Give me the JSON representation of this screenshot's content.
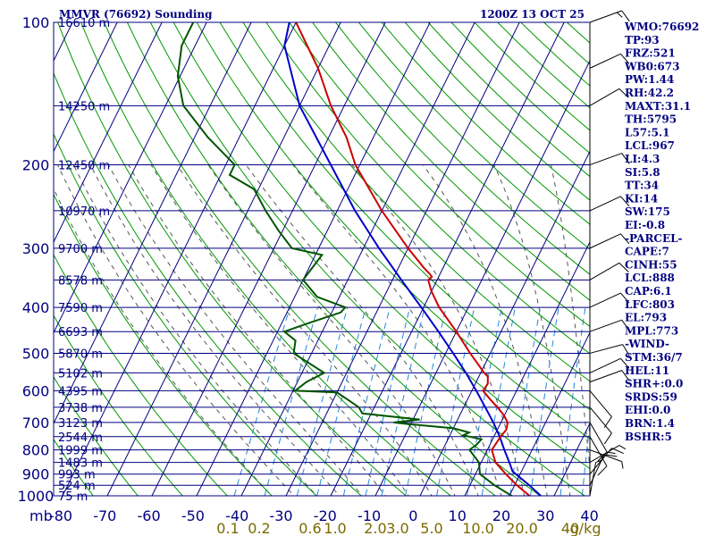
{
  "title": "MMVR (76692) Sounding",
  "time": "1200Z 13 OCT 25",
  "colors": {
    "frame": "#000080",
    "dry_adiabat": "#009900",
    "moist_adiabat": "#555555",
    "mixing_ratio": "#2288dd",
    "temperature": "#cc0000",
    "dewpoint": "#005500",
    "parcel": "#0000cc",
    "mixing_ratio_labels": "#7a6a00"
  },
  "chart_data": {
    "type": "skew-t",
    "pressure_axis": {
      "unit": "mb",
      "range": [
        1000,
        100
      ],
      "scale": "log",
      "ticks": [
        100,
        200,
        300,
        400,
        500,
        600,
        700,
        800,
        900,
        1000
      ]
    },
    "temperature_axis": {
      "unit": "C",
      "ticks": [
        -80,
        -70,
        -60,
        -50,
        -40,
        -30,
        -20,
        -10,
        0,
        10,
        20,
        30,
        40
      ]
    },
    "x_tick_labels": [
      "-80",
      "-70",
      "-60",
      "-50",
      "-40",
      "-30",
      "-20",
      "-10",
      "0",
      "10",
      "20",
      "30",
      "40"
    ],
    "pressure_unit_label": "mb",
    "height_labels": [
      {
        "p": 100,
        "text": "16610 m"
      },
      {
        "p": 150,
        "text": "14250 m"
      },
      {
        "p": 200,
        "text": "12450 m"
      },
      {
        "p": 250,
        "text": "10970 m"
      },
      {
        "p": 300,
        "text": "9700 m"
      },
      {
        "p": 350,
        "text": "8578 m"
      },
      {
        "p": 400,
        "text": "7590 m"
      },
      {
        "p": 450,
        "text": "6693 m"
      },
      {
        "p": 500,
        "text": "5870 m"
      },
      {
        "p": 550,
        "text": "5102 m"
      },
      {
        "p": 600,
        "text": "4395 m"
      },
      {
        "p": 650,
        "text": "3738 m"
      },
      {
        "p": 700,
        "text": "3123 m"
      },
      {
        "p": 750,
        "text": "2544 m"
      },
      {
        "p": 800,
        "text": "1999 m"
      },
      {
        "p": 850,
        "text": "1483 m"
      },
      {
        "p": 900,
        "text": "993 m"
      },
      {
        "p": 950,
        "text": "524 m"
      },
      {
        "p": 1000,
        "text": "75 m"
      }
    ],
    "mixing_ratio_labels": [
      "0.1",
      "0.2",
      "0.6",
      "1.0",
      "2.0",
      "3.0",
      "5.0",
      "10.0",
      "20.0",
      "40"
    ],
    "mixing_ratio_unit": "g/kg",
    "temperature_profile": [
      [
        1003,
        24.0
      ],
      [
        1000,
        24.5
      ],
      [
        950,
        20.5
      ],
      [
        900,
        16.8
      ],
      [
        850,
        13.2
      ],
      [
        800,
        11.0
      ],
      [
        750,
        11.5
      ],
      [
        725,
        12.0
      ],
      [
        700,
        11.5
      ],
      [
        675,
        9.8
      ],
      [
        650,
        7.5
      ],
      [
        625,
        5.0
      ],
      [
        600,
        2.5
      ],
      [
        580,
        2.8
      ],
      [
        560,
        2.0
      ],
      [
        550,
        0.8
      ],
      [
        500,
        -4.5
      ],
      [
        450,
        -10.0
      ],
      [
        400,
        -16.5
      ],
      [
        370,
        -20.0
      ],
      [
        350,
        -22.0
      ],
      [
        345,
        -21.5
      ],
      [
        340,
        -22.3
      ],
      [
        330,
        -24.3
      ],
      [
        300,
        -30.0
      ],
      [
        250,
        -40.0
      ],
      [
        200,
        -51.0
      ],
      [
        175,
        -56.0
      ],
      [
        150,
        -63.0
      ],
      [
        125,
        -70.0
      ],
      [
        100,
        -80.0
      ]
    ],
    "dewpoint_profile": [
      [
        1003,
        20.0
      ],
      [
        1000,
        20.5
      ],
      [
        950,
        15.5
      ],
      [
        900,
        11.0
      ],
      [
        850,
        9.5
      ],
      [
        800,
        6.0
      ],
      [
        780,
        7.0
      ],
      [
        760,
        7.5
      ],
      [
        745,
        3.0
      ],
      [
        735,
        4.0
      ],
      [
        720,
        0.0
      ],
      [
        705,
        -11.0
      ],
      [
        700,
        -14.0
      ],
      [
        690,
        -8.5
      ],
      [
        670,
        -22.0
      ],
      [
        650,
        -23.5
      ],
      [
        625,
        -27.0
      ],
      [
        605,
        -30.0
      ],
      [
        600,
        -39.5
      ],
      [
        575,
        -38.0
      ],
      [
        550,
        -35.0
      ],
      [
        500,
        -44.0
      ],
      [
        470,
        -45.0
      ],
      [
        450,
        -48.5
      ],
      [
        430,
        -43.5
      ],
      [
        410,
        -38.0
      ],
      [
        400,
        -37.5
      ],
      [
        380,
        -45.0
      ],
      [
        350,
        -50.0
      ],
      [
        310,
        -48.5
      ],
      [
        300,
        -56.0
      ],
      [
        275,
        -61.0
      ],
      [
        250,
        -66.0
      ],
      [
        225,
        -71.0
      ],
      [
        210,
        -78.0
      ],
      [
        200,
        -78.0
      ],
      [
        175,
        -87.0
      ],
      [
        150,
        -96.0
      ],
      [
        130,
        -100.5
      ],
      [
        112,
        -103.0
      ],
      [
        100,
        -103.0
      ]
    ],
    "parcel_profile": [
      [
        1000,
        27.0
      ],
      [
        950,
        23.3
      ],
      [
        888,
        18.0
      ],
      [
        850,
        16.3
      ],
      [
        800,
        13.8
      ],
      [
        750,
        11.3
      ],
      [
        700,
        8.3
      ],
      [
        650,
        4.8
      ],
      [
        600,
        1.0
      ],
      [
        550,
        -3.3
      ],
      [
        500,
        -8.3
      ],
      [
        450,
        -14.0
      ],
      [
        400,
        -20.5
      ],
      [
        350,
        -28.0
      ],
      [
        300,
        -36.5
      ],
      [
        250,
        -46.0
      ],
      [
        200,
        -56.5
      ],
      [
        150,
        -70.0
      ],
      [
        112,
        -80.0
      ],
      [
        100,
        -81.5
      ]
    ],
    "wind_barbs": [
      {
        "p": 1000,
        "dir": 10,
        "spd": 5
      },
      {
        "p": 950,
        "dir": 25,
        "spd": 10
      },
      {
        "p": 900,
        "dir": 40,
        "spd": 15
      },
      {
        "p": 850,
        "dir": 60,
        "spd": 5
      },
      {
        "p": 800,
        "dir": 110,
        "spd": 5
      },
      {
        "p": 750,
        "dir": 150,
        "spd": 10
      },
      {
        "p": 700,
        "dir": 150,
        "spd": 10
      },
      {
        "p": 650,
        "dir": 140,
        "spd": 10
      },
      {
        "p": 600,
        "dir": 140,
        "spd": 10
      },
      {
        "p": 575,
        "dir": 70,
        "spd": 10
      },
      {
        "p": 550,
        "dir": 65,
        "spd": 10
      },
      {
        "p": 500,
        "dir": 75,
        "spd": 10
      },
      {
        "p": 450,
        "dir": 70,
        "spd": 10
      },
      {
        "p": 400,
        "dir": 65,
        "spd": 10
      },
      {
        "p": 350,
        "dir": 60,
        "spd": 10
      },
      {
        "p": 300,
        "dir": 65,
        "spd": 10
      },
      {
        "p": 250,
        "dir": 65,
        "spd": 10
      },
      {
        "p": 200,
        "dir": 70,
        "spd": 10
      },
      {
        "p": 150,
        "dir": 60,
        "spd": 10
      },
      {
        "p": 125,
        "dir": 65,
        "spd": 10
      },
      {
        "p": 100,
        "dir": 70,
        "spd": 15
      }
    ]
  },
  "indices": [
    "WMO:76692",
    "TP:93",
    "FRZ:521",
    "WB0:673",
    "PW:1.44",
    "RH:42.2",
    "MAXT:31.1",
    "TH:5795",
    "L57:5.1",
    "LCL:967",
    "LI:4.3",
    "SI:5.8",
    "TT:34",
    "KI:14",
    "SW:175",
    "EI:-0.8",
    "-PARCEL-",
    "CAPE:7",
    "CINH:55",
    "LCL:888",
    "CAP:6.1",
    "LFC:803",
    "EL:793",
    "MPL:773",
    "-WIND-",
    "STM:36/7",
    "HEL:11",
    "SHR+:0.0",
    "SRDS:59",
    "EHI:0.0",
    "BRN:1.4",
    "BSHR:5"
  ]
}
